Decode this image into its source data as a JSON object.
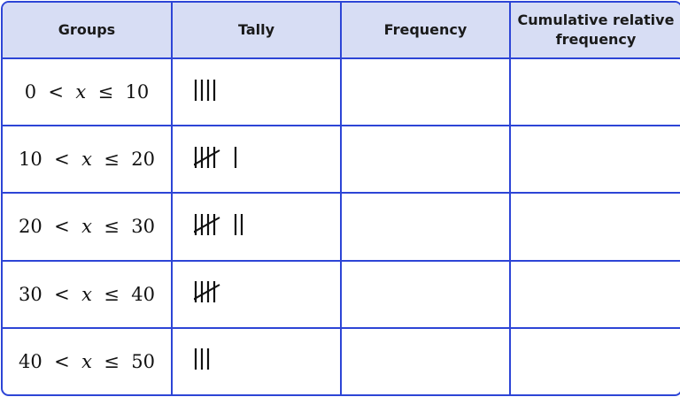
{
  "table": {
    "headers": [
      "Groups",
      "Tally",
      "Frequency",
      "Cumulative relative frequency"
    ],
    "rows": [
      {
        "group": "0 < x ≤ 10",
        "tally": 4,
        "frequency": "",
        "cumulative_relative_frequency": ""
      },
      {
        "group": "10 < x ≤ 20",
        "tally": 6,
        "frequency": "",
        "cumulative_relative_frequency": ""
      },
      {
        "group": "20 < x ≤ 30",
        "tally": 7,
        "frequency": "",
        "cumulative_relative_frequency": ""
      },
      {
        "group": "30 < x ≤ 40",
        "tally": 5,
        "frequency": "",
        "cumulative_relative_frequency": ""
      },
      {
        "group": "40 < x ≤ 50",
        "tally": 3,
        "frequency": "",
        "cumulative_relative_frequency": ""
      }
    ]
  },
  "colors": {
    "border": "#2d45d6",
    "header_background": "#d7ddf4"
  }
}
